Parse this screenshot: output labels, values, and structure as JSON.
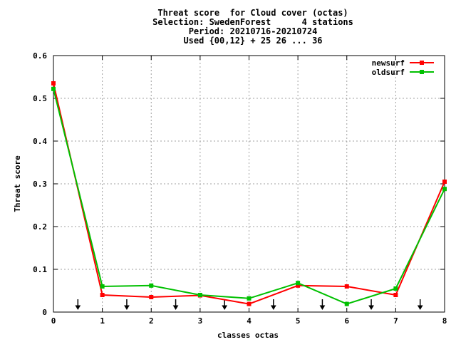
{
  "chart_data": {
    "type": "line",
    "title_lines": [
      "Threat score  for Cloud cover (octas)",
      "Selection: SwedenForest      4 stations",
      "Period: 20210716-20210724",
      "Used {00,12} + 25 26 ... 36"
    ],
    "xlabel": "classes octas",
    "ylabel": "Threat score",
    "xlim": [
      0,
      8
    ],
    "ylim": [
      0,
      0.6
    ],
    "xticks": [
      "0",
      "1",
      "2",
      "3",
      "4",
      "5",
      "6",
      "7",
      "8"
    ],
    "yticks": [
      "0",
      "0.1",
      "0.2",
      "0.3",
      "0.4",
      "0.5",
      "0.6"
    ],
    "grid": true,
    "legend_position": "top-right",
    "x": [
      0,
      1,
      2,
      3,
      4,
      5,
      6,
      7,
      8
    ],
    "series": [
      {
        "name": "newsurf",
        "color": "#ff0000",
        "values": [
          0.535,
          0.04,
          0.035,
          0.039,
          0.019,
          0.062,
          0.06,
          0.04,
          0.305
        ]
      },
      {
        "name": "oldsurf",
        "color": "#00c000",
        "values": [
          0.522,
          0.06,
          0.062,
          0.04,
          0.032,
          0.068,
          0.019,
          0.055,
          0.288
        ]
      }
    ],
    "arrow_markers_x": [
      0.5,
      1.5,
      2.5,
      3.5,
      4.5,
      5.5,
      6.5,
      7.5
    ]
  }
}
